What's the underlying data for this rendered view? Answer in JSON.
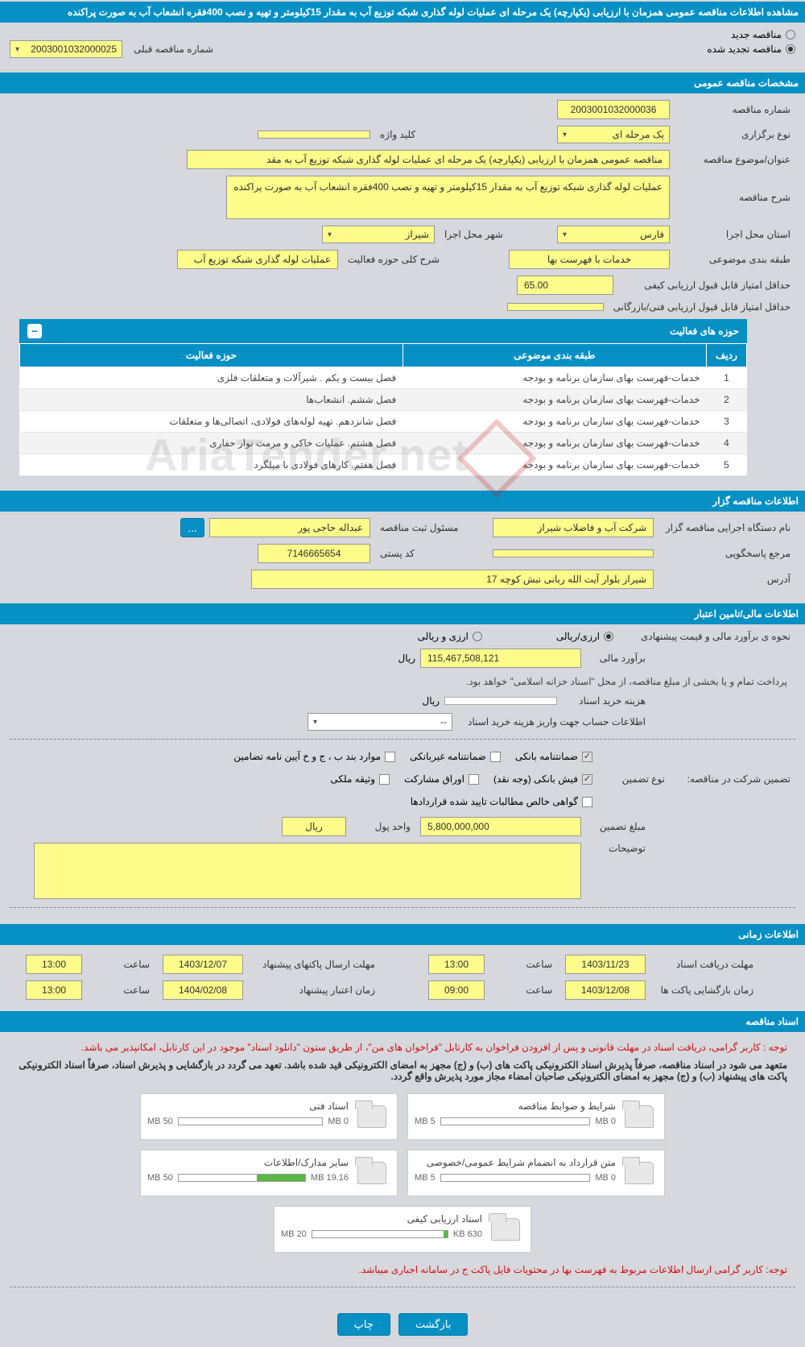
{
  "colors": {
    "primary": "#0790c4",
    "field_bg": "#fdfb8a",
    "page_bg": "#d6d8dd",
    "progress": "#58b947",
    "red": "#d01212"
  },
  "header": {
    "title": "مشاهده اطلاعات مناقصه عمومی همزمان با ارزیابی (یکپارچه) یک مرحله ای عملیات لوله گذاری شبکه توزیع آب به مقدار 15کیلومتر و تهیه و نصب 400فقره انشعاب آب به صورت پراکنده"
  },
  "top_radio": {
    "new_label": "مناقصه جدید",
    "renew_label": "مناقصه تجدید شده",
    "prev_label": "شماره مناقصه قبلی",
    "prev_value": "2003001032000025"
  },
  "sec_general": {
    "title": "مشخصات مناقصه عمومی",
    "tender_no_label": "شماره مناقصه",
    "tender_no": "2003001032000036",
    "type_label": "نوع برگزاری",
    "type_value": "یک مرحله ای",
    "keyword_label": "کلید واژه",
    "keyword_value": "",
    "subject_label": "عنوان/موضوع مناقصه",
    "subject_value": "مناقصه عمومی همزمان با ارزیابی (یکپارچه) یک مرحله ای عملیات لوله گذاری شبکه توزیع آب به مقد",
    "desc_label": "شرح مناقصه",
    "desc_value": "عملیات لوله گذاری شبکه توزیع آب به مقدار 15کیلومتر و تهیه و نصب 400فقره انشعاب آب به صورت پراکنده",
    "province_label": "استان محل اجرا",
    "province_value": "فارس",
    "city_label": "شهر محل اجرا",
    "city_value": "شیراز",
    "category_label": "طبقه بندی موضوعی",
    "category_value": "خدمات با فهرست بها",
    "activity_label": "شرح کلی حوزه فعالیت",
    "activity_value": "عملیات لوله گذاری شبکه توزیع آب",
    "min_score_label": "حداقل امتیاز قابل قبول ارزیابی کیفی",
    "min_score_value": "65.00",
    "min_score2_label": "حداقل امتیاز قابل قبول ارزیابی فنی/بازرگانی",
    "min_score2_value": ""
  },
  "activity_table": {
    "title": "حوزه های فعالیت",
    "columns": [
      "ردیف",
      "طبقه بندی موضوعی",
      "حوزه فعالیت"
    ],
    "rows": [
      [
        "1",
        "خدمات-فهرست بهای سازمان برنامه و بودجه",
        "فصل بیست و یکم . شیرآلات و متعلقات فلزی"
      ],
      [
        "2",
        "خدمات-فهرست بهای سازمان برنامه و بودجه",
        "فصل ششم. انشعاب‌ها"
      ],
      [
        "3",
        "خدمات-فهرست بهای سازمان برنامه و بودجه",
        "فصل شانزدهم. تهیه لوله‌های فولادی، اتصالی‌ها و متعلقات"
      ],
      [
        "4",
        "خدمات-فهرست بهای سازمان برنامه و بودجه",
        "فصل هشتم. عملیات خاکی و مرمت نوار حفاری"
      ],
      [
        "5",
        "خدمات-فهرست بهای سازمان برنامه و بودجه",
        "فصل هفتم. کارهای فولادی با میلگرد"
      ]
    ]
  },
  "sec_org": {
    "title": "اطلاعات مناقصه گزار",
    "org_label": "نام دستگاه اجرایی مناقصه گزار",
    "org_value": "شرکت آب و فاضلاب شیراز",
    "responsible_label": "مسئول ثبت مناقصه",
    "responsible_value": "عبداله حاجی پور",
    "contact_label": "مرجع پاسخگویی",
    "contact_value": "",
    "postal_label": "کد پستی",
    "postal_value": "7146665654",
    "address_label": "آدرس",
    "address_value": "شیراز بلوار آیت الله ربانی نبش کوچه 17",
    "more_btn": "..."
  },
  "sec_finance": {
    "title": "اطلاعات مالی/تامین اعتبار",
    "method_label": "نحوه ی برآورد مالی و قیمت پیشنهادی",
    "opt1": "ارزی/ریالی",
    "opt2": "ارزی و ریالی",
    "estimate_label": "برآورد مالی",
    "estimate_value": "115,467,508,121",
    "unit": "ریال",
    "note": "پرداخت تمام و یا بخشی از مبلغ مناقصه، از محل \"اسناد خزانه اسلامی\" خواهد بود.",
    "doc_cost_label": "هزینه خرید اسناد",
    "doc_cost_value": "",
    "account_label": "اطلاعات حساب جهت واریز هزینه خرید اسناد",
    "account_value": "--"
  },
  "guarantee": {
    "label": "تضمین شرکت در مناقصه:",
    "type_label": "نوع تضمین",
    "opts": [
      {
        "label": "ضمانتنامه بانکی",
        "checked": true
      },
      {
        "label": "ضمانتنامه غیربانکی",
        "checked": false
      },
      {
        "label": "موارد بند ب ، ج و خ آیین نامه تضامین",
        "checked": false
      },
      {
        "label": "فیش بانکی (وجه نقد)",
        "checked": true
      },
      {
        "label": "اوراق مشارکت",
        "checked": false
      },
      {
        "label": "وثیقه ملکی",
        "checked": false
      },
      {
        "label": "گواهی خالص مطالبات تایید شده قراردادها",
        "checked": false
      }
    ],
    "amount_label": "مبلغ تضمین",
    "amount_value": "5,800,000,000",
    "unit_label": "واحد پول",
    "unit_value": "ریال",
    "desc_label": "توضیحات"
  },
  "sec_time": {
    "title": "اطلاعات زمانی",
    "rows": [
      {
        "l1": "مهلت دریافت اسناد",
        "d1": "1403/11/23",
        "t1": "13:00",
        "l2": "مهلت ارسال پاکتهای پیشنهاد",
        "d2": "1403/12/07",
        "t2": "13:00"
      },
      {
        "l1": "زمان بازگشایی پاکت ها",
        "d1": "1403/12/08",
        "t1": "09:00",
        "l2": "زمان اعتبار پیشنهاد",
        "d2": "1404/02/08",
        "t2": "13:00"
      }
    ],
    "time_label": "ساعت"
  },
  "sec_docs": {
    "title": "اسناد مناقصه",
    "note1": "توجه : کاربر گرامی، دریافت اسناد در مهلت قانونی و پس از افزودن فراخوان به کارتابل \"فراخوان های من\"، از طریق ستون \"دانلود اسناد\" موجود در این کارتابل، امکانپذیر می باشد.",
    "note2": "متعهد می شود در اسناد مناقصه، صرفاً پذیرش اسناد الکترونیکی پاکت های (ب) و (ج) مجهز به امضای الکترونیکی قید شده باشد. تعهد می گردد در بازگشایی و پذیرش اسناد، صرفاً اسناد الکترونیکی پاکت های پیشنهاد (ب) و (ج) مجهز به امضای الکترونیکی صاحبان امضاء مجاز مورد پذیرش واقع گردد.",
    "files": [
      {
        "title": "شرایط و ضوابط مناقصه",
        "used": "0 MB",
        "total": "5 MB",
        "pct": 0
      },
      {
        "title": "اسناد فنی",
        "used": "0 MB",
        "total": "50 MB",
        "pct": 0
      },
      {
        "title": "متن قرارداد به انضمام شرایط عمومی/خصوصی",
        "used": "0 MB",
        "total": "5 MB",
        "pct": 0
      },
      {
        "title": "سایر مدارک/اطلاعات",
        "used": "19.16 MB",
        "total": "50 MB",
        "pct": 38
      },
      {
        "title": "اسناد ارزیابی کیفی",
        "used": "630 KB",
        "total": "20 MB",
        "pct": 3
      }
    ],
    "bottom_note": "توجه: کاربر گرامی ارسال اطلاعات مربوط به فهرست بها در محتویات فایل پاکت ج در سامانه اجباری میباشد."
  },
  "buttons": {
    "back": "بازگشت",
    "print": "چاپ"
  },
  "watermark": "AriaTender.net"
}
